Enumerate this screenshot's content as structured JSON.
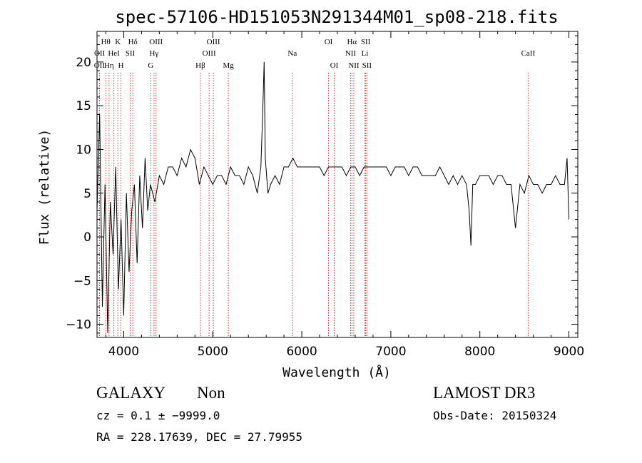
{
  "chart_data": {
    "type": "line",
    "title": "spec-57106-HD151053N291344M01_sp08-218.fits",
    "xlabel": "Wavelength (Å)",
    "ylabel": "Flux (relative)",
    "xlim": [
      3700,
      9100
    ],
    "ylim": [
      -11.5,
      23.5
    ],
    "xticks": [
      4000,
      5000,
      6000,
      7000,
      8000,
      9000
    ],
    "xtick_labels": [
      "4000",
      "5000",
      "6000",
      "7000",
      "8000",
      "9000"
    ],
    "yticks": [
      -10,
      -5,
      0,
      5,
      10,
      15,
      20
    ],
    "ytick_labels": [
      "−10",
      "−5",
      "0",
      "5",
      "10",
      "15",
      "20"
    ],
    "line_color": "#000000",
    "marker_color": "#cc2222",
    "series": [
      {
        "name": "flux",
        "x": [
          3700,
          3730,
          3760,
          3790,
          3820,
          3850,
          3880,
          3910,
          3940,
          3970,
          4000,
          4030,
          4060,
          4090,
          4120,
          4150,
          4180,
          4210,
          4240,
          4270,
          4300,
          4350,
          4400,
          4450,
          4500,
          4550,
          4600,
          4650,
          4700,
          4750,
          4800,
          4850,
          4900,
          4950,
          5000,
          5050,
          5100,
          5150,
          5200,
          5250,
          5300,
          5350,
          5400,
          5450,
          5500,
          5540,
          5560,
          5577,
          5590,
          5620,
          5650,
          5700,
          5750,
          5800,
          5850,
          5900,
          5950,
          6000,
          6050,
          6100,
          6150,
          6200,
          6250,
          6300,
          6350,
          6400,
          6450,
          6500,
          6550,
          6600,
          6650,
          6700,
          6750,
          6800,
          6850,
          6900,
          6950,
          7000,
          7050,
          7100,
          7150,
          7200,
          7250,
          7300,
          7350,
          7400,
          7450,
          7500,
          7550,
          7600,
          7650,
          7700,
          7750,
          7800,
          7850,
          7880,
          7900,
          7920,
          7950,
          8000,
          8050,
          8100,
          8150,
          8200,
          8250,
          8300,
          8350,
          8400,
          8450,
          8500,
          8550,
          8600,
          8650,
          8700,
          8750,
          8800,
          8850,
          8900,
          8950,
          8980,
          9000
        ],
        "y": [
          3,
          14,
          -8,
          6,
          -11,
          4,
          -2,
          8,
          -6,
          2,
          -9,
          5,
          -4,
          3,
          6,
          -3,
          7,
          1,
          9,
          3,
          6,
          4,
          7,
          6,
          8,
          8,
          7,
          9,
          8,
          10,
          9,
          6,
          8,
          7,
          6,
          7,
          7,
          6,
          8,
          7,
          7,
          6,
          8,
          7,
          5,
          8,
          14,
          20,
          9,
          5,
          6,
          7,
          6,
          8,
          8,
          9,
          8,
          8,
          8,
          8,
          8,
          8,
          7,
          8,
          8,
          8,
          8,
          7,
          8,
          8,
          7,
          8,
          8,
          8,
          8,
          8,
          8,
          7,
          8,
          8,
          8,
          7,
          8,
          8,
          7,
          7,
          7,
          7,
          8,
          7,
          6,
          7,
          6,
          7,
          6,
          3,
          -1,
          6,
          6,
          7,
          7,
          7,
          6,
          7,
          7,
          6,
          6,
          1,
          6,
          5,
          7,
          6,
          6,
          5,
          6,
          6,
          7,
          6,
          6,
          9,
          2
        ]
      }
    ],
    "lines": [
      {
        "label": "OII",
        "x": 3727,
        "row": 3
      },
      {
        "label": "OII",
        "x": 3729,
        "row": 2
      },
      {
        "label": "Hθ",
        "x": 3798,
        "row": 1
      },
      {
        "label": "Hη",
        "x": 3835,
        "row": 3
      },
      {
        "label": "HeI",
        "x": 3889,
        "row": 2
      },
      {
        "label": "K",
        "x": 3934,
        "row": 1
      },
      {
        "label": "H",
        "x": 3968,
        "row": 3
      },
      {
        "label": "Hδ",
        "x": 4102,
        "row": 1
      },
      {
        "label": "SII",
        "x": 4072,
        "row": 2
      },
      {
        "label": "OIII",
        "x": 4363,
        "row": 1
      },
      {
        "label": "Hγ",
        "x": 4340,
        "row": 2
      },
      {
        "label": "G",
        "x": 4304,
        "row": 3
      },
      {
        "label": "Hβ",
        "x": 4861,
        "row": 3
      },
      {
        "label": "OIII",
        "x": 4959,
        "row": 2
      },
      {
        "label": "OIII",
        "x": 5007,
        "row": 1
      },
      {
        "label": "Mg",
        "x": 5175,
        "row": 3
      },
      {
        "label": "Na",
        "x": 5894,
        "row": 2
      },
      {
        "label": "OI",
        "x": 6300,
        "row": 1
      },
      {
        "label": "OI",
        "x": 6364,
        "row": 3
      },
      {
        "label": "Hα",
        "x": 6563,
        "row": 1
      },
      {
        "label": "NII",
        "x": 6548,
        "row": 2
      },
      {
        "label": "NII",
        "x": 6584,
        "row": 3
      },
      {
        "label": "SII",
        "x": 6717,
        "row": 1
      },
      {
        "label": "Li",
        "x": 6708,
        "row": 2
      },
      {
        "label": "SII",
        "x": 6731,
        "row": 3
      },
      {
        "label": "CaII",
        "x": 8542,
        "row": 2
      }
    ]
  },
  "info": {
    "object_class": "GALAXY",
    "subclass": "Non",
    "survey": "LAMOST DR3",
    "cz": "cz = 0.1 ± −9999.0",
    "obs_date": "Obs-Date: 20150324",
    "radec": "RA = 228.17639, DEC =  27.79955"
  }
}
